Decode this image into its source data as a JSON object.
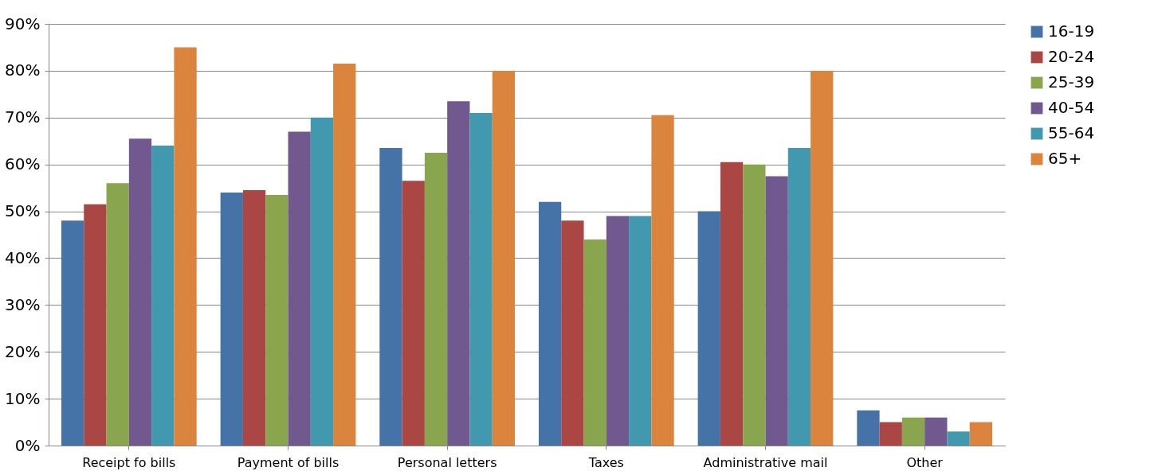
{
  "chart_data": {
    "type": "bar",
    "categories": [
      "Receipt fo bills",
      "Payment of bills",
      "Personal letters",
      "Taxes",
      "Administrative mail",
      "Other"
    ],
    "series": [
      {
        "name": "16-19",
        "color": "#4572a7",
        "values": [
          48,
          54,
          63.5,
          52,
          50,
          7.5
        ]
      },
      {
        "name": "20-24",
        "color": "#aa4643",
        "values": [
          51.5,
          54.5,
          56.5,
          48,
          60.5,
          5
        ]
      },
      {
        "name": "25-39",
        "color": "#89a54e",
        "values": [
          56,
          53.5,
          62.5,
          44,
          60,
          6
        ]
      },
      {
        "name": "40-54",
        "color": "#71588f",
        "values": [
          65.5,
          67,
          73.5,
          49,
          57.5,
          6
        ]
      },
      {
        "name": "55-64",
        "color": "#4198af",
        "values": [
          64,
          70,
          71,
          49,
          63.5,
          3
        ]
      },
      {
        "name": "65+",
        "color": "#db843d",
        "values": [
          85,
          81.5,
          80,
          70.5,
          80,
          5
        ]
      }
    ],
    "ylim": [
      0,
      90
    ],
    "yticks": [
      {
        "value": 0,
        "label": "0%"
      },
      {
        "value": 10,
        "label": "10%"
      },
      {
        "value": 20,
        "label": "20%"
      },
      {
        "value": 30,
        "label": "30%"
      },
      {
        "value": 40,
        "label": "40%"
      },
      {
        "value": 50,
        "label": "50%"
      },
      {
        "value": 60,
        "label": "60%"
      },
      {
        "value": 70,
        "label": "70%"
      },
      {
        "value": 80,
        "label": "80%"
      },
      {
        "value": 90,
        "label": "90%"
      }
    ],
    "grid": "y",
    "legend": "right"
  }
}
